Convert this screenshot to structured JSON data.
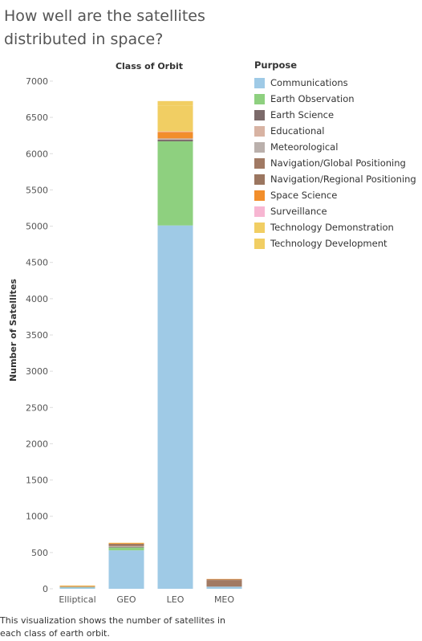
{
  "title": "How well are the satellites distributed in space?",
  "caption": "This visualization shows the number of satellites in each class of earth orbit.",
  "chart_data": {
    "type": "bar",
    "stacked": true,
    "column_header": "Class of Orbit",
    "ylabel": "Number of Satellites",
    "ylim": [
      0,
      7000
    ],
    "yticks": [
      0,
      500,
      1000,
      1500,
      2000,
      2500,
      3000,
      3500,
      4000,
      4500,
      5000,
      5500,
      6000,
      6500,
      7000
    ],
    "categories": [
      "Elliptical",
      "GEO",
      "LEO",
      "MEO"
    ],
    "legend_title": "Purpose",
    "legend_position": "right",
    "grid": false,
    "series": [
      {
        "name": "Communications",
        "color": "#9fcae6",
        "values": [
          20,
          530,
          5010,
          30
        ]
      },
      {
        "name": "Earth Observation",
        "color": "#8ed07f",
        "values": [
          5,
          40,
          1160,
          0
        ]
      },
      {
        "name": "Earth Science",
        "color": "#7b6a6a",
        "values": [
          3,
          5,
          25,
          0
        ]
      },
      {
        "name": "Educational",
        "color": "#d8b3a3",
        "values": [
          0,
          0,
          5,
          0
        ]
      },
      {
        "name": "Meteorological",
        "color": "#bab0ac",
        "values": [
          2,
          10,
          10,
          0
        ]
      },
      {
        "name": "Navigation/Global Positioning",
        "color": "#a17a64",
        "values": [
          0,
          10,
          0,
          90
        ]
      },
      {
        "name": "Navigation/Regional Positioning",
        "color": "#9b7660",
        "values": [
          0,
          25,
          0,
          10
        ]
      },
      {
        "name": "Space Science",
        "color": "#f28e2b",
        "values": [
          10,
          10,
          90,
          5
        ]
      },
      {
        "name": "Surveillance",
        "color": "#f7b6d2",
        "values": [
          0,
          0,
          5,
          0
        ]
      },
      {
        "name": "Technology Demonstration",
        "color": "#f1ce63",
        "values": [
          5,
          5,
          360,
          0
        ]
      },
      {
        "name": "Technology Development",
        "color": "#f1ce63",
        "values": [
          0,
          0,
          60,
          0
        ]
      }
    ]
  }
}
